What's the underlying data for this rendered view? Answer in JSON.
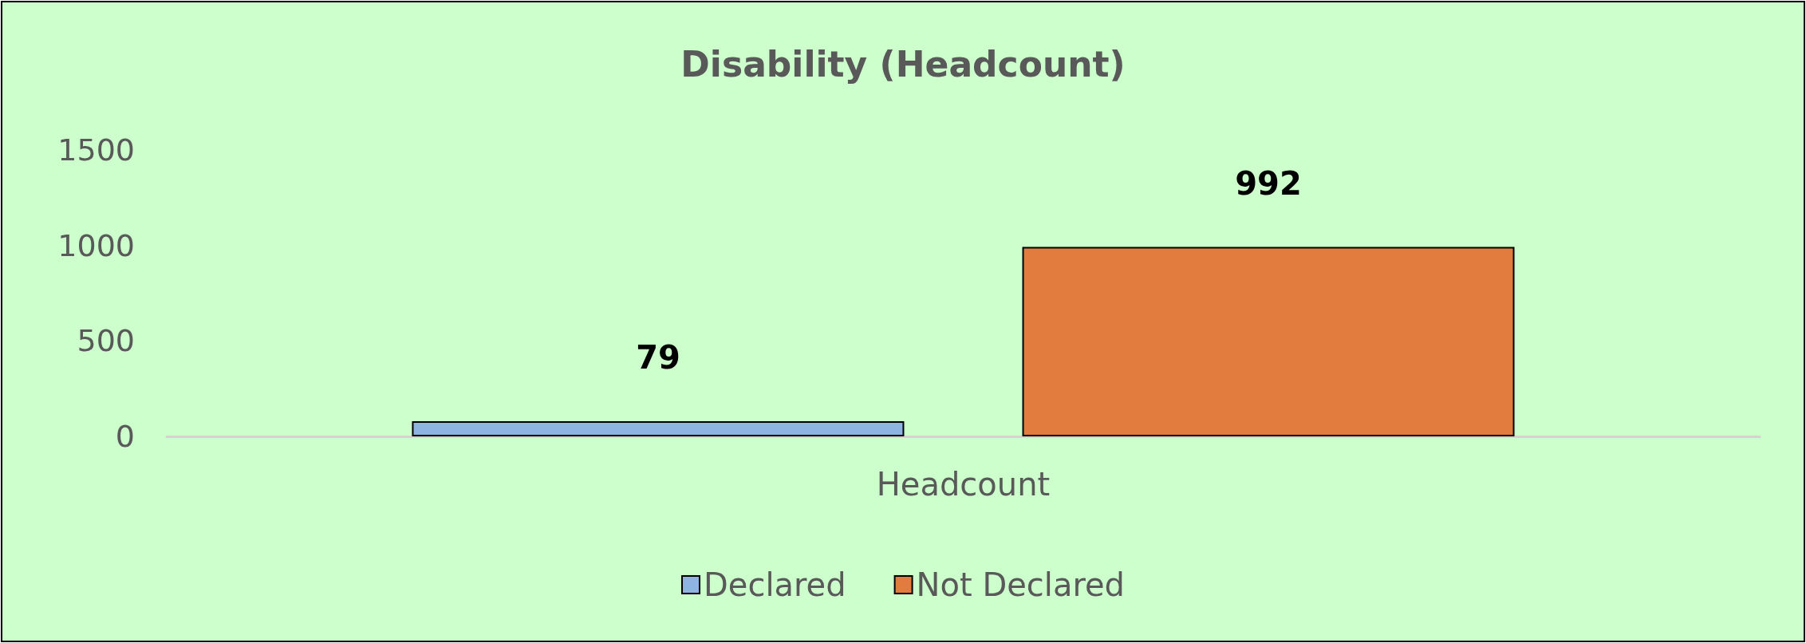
{
  "chart_data": {
    "type": "bar",
    "title": "Disability (Headcount)",
    "categories": [
      "Headcount"
    ],
    "series": [
      {
        "name": "Declared",
        "color": "#8eb4e3",
        "values": [
          79
        ]
      },
      {
        "name": "Not Declared",
        "color": "#e27c3e",
        "values": [
          992
        ]
      }
    ],
    "ylim": [
      0,
      1500
    ],
    "yticks": [
      0,
      500,
      1000,
      1500
    ],
    "grid": false,
    "legend": "bottom",
    "data_labels": true
  }
}
